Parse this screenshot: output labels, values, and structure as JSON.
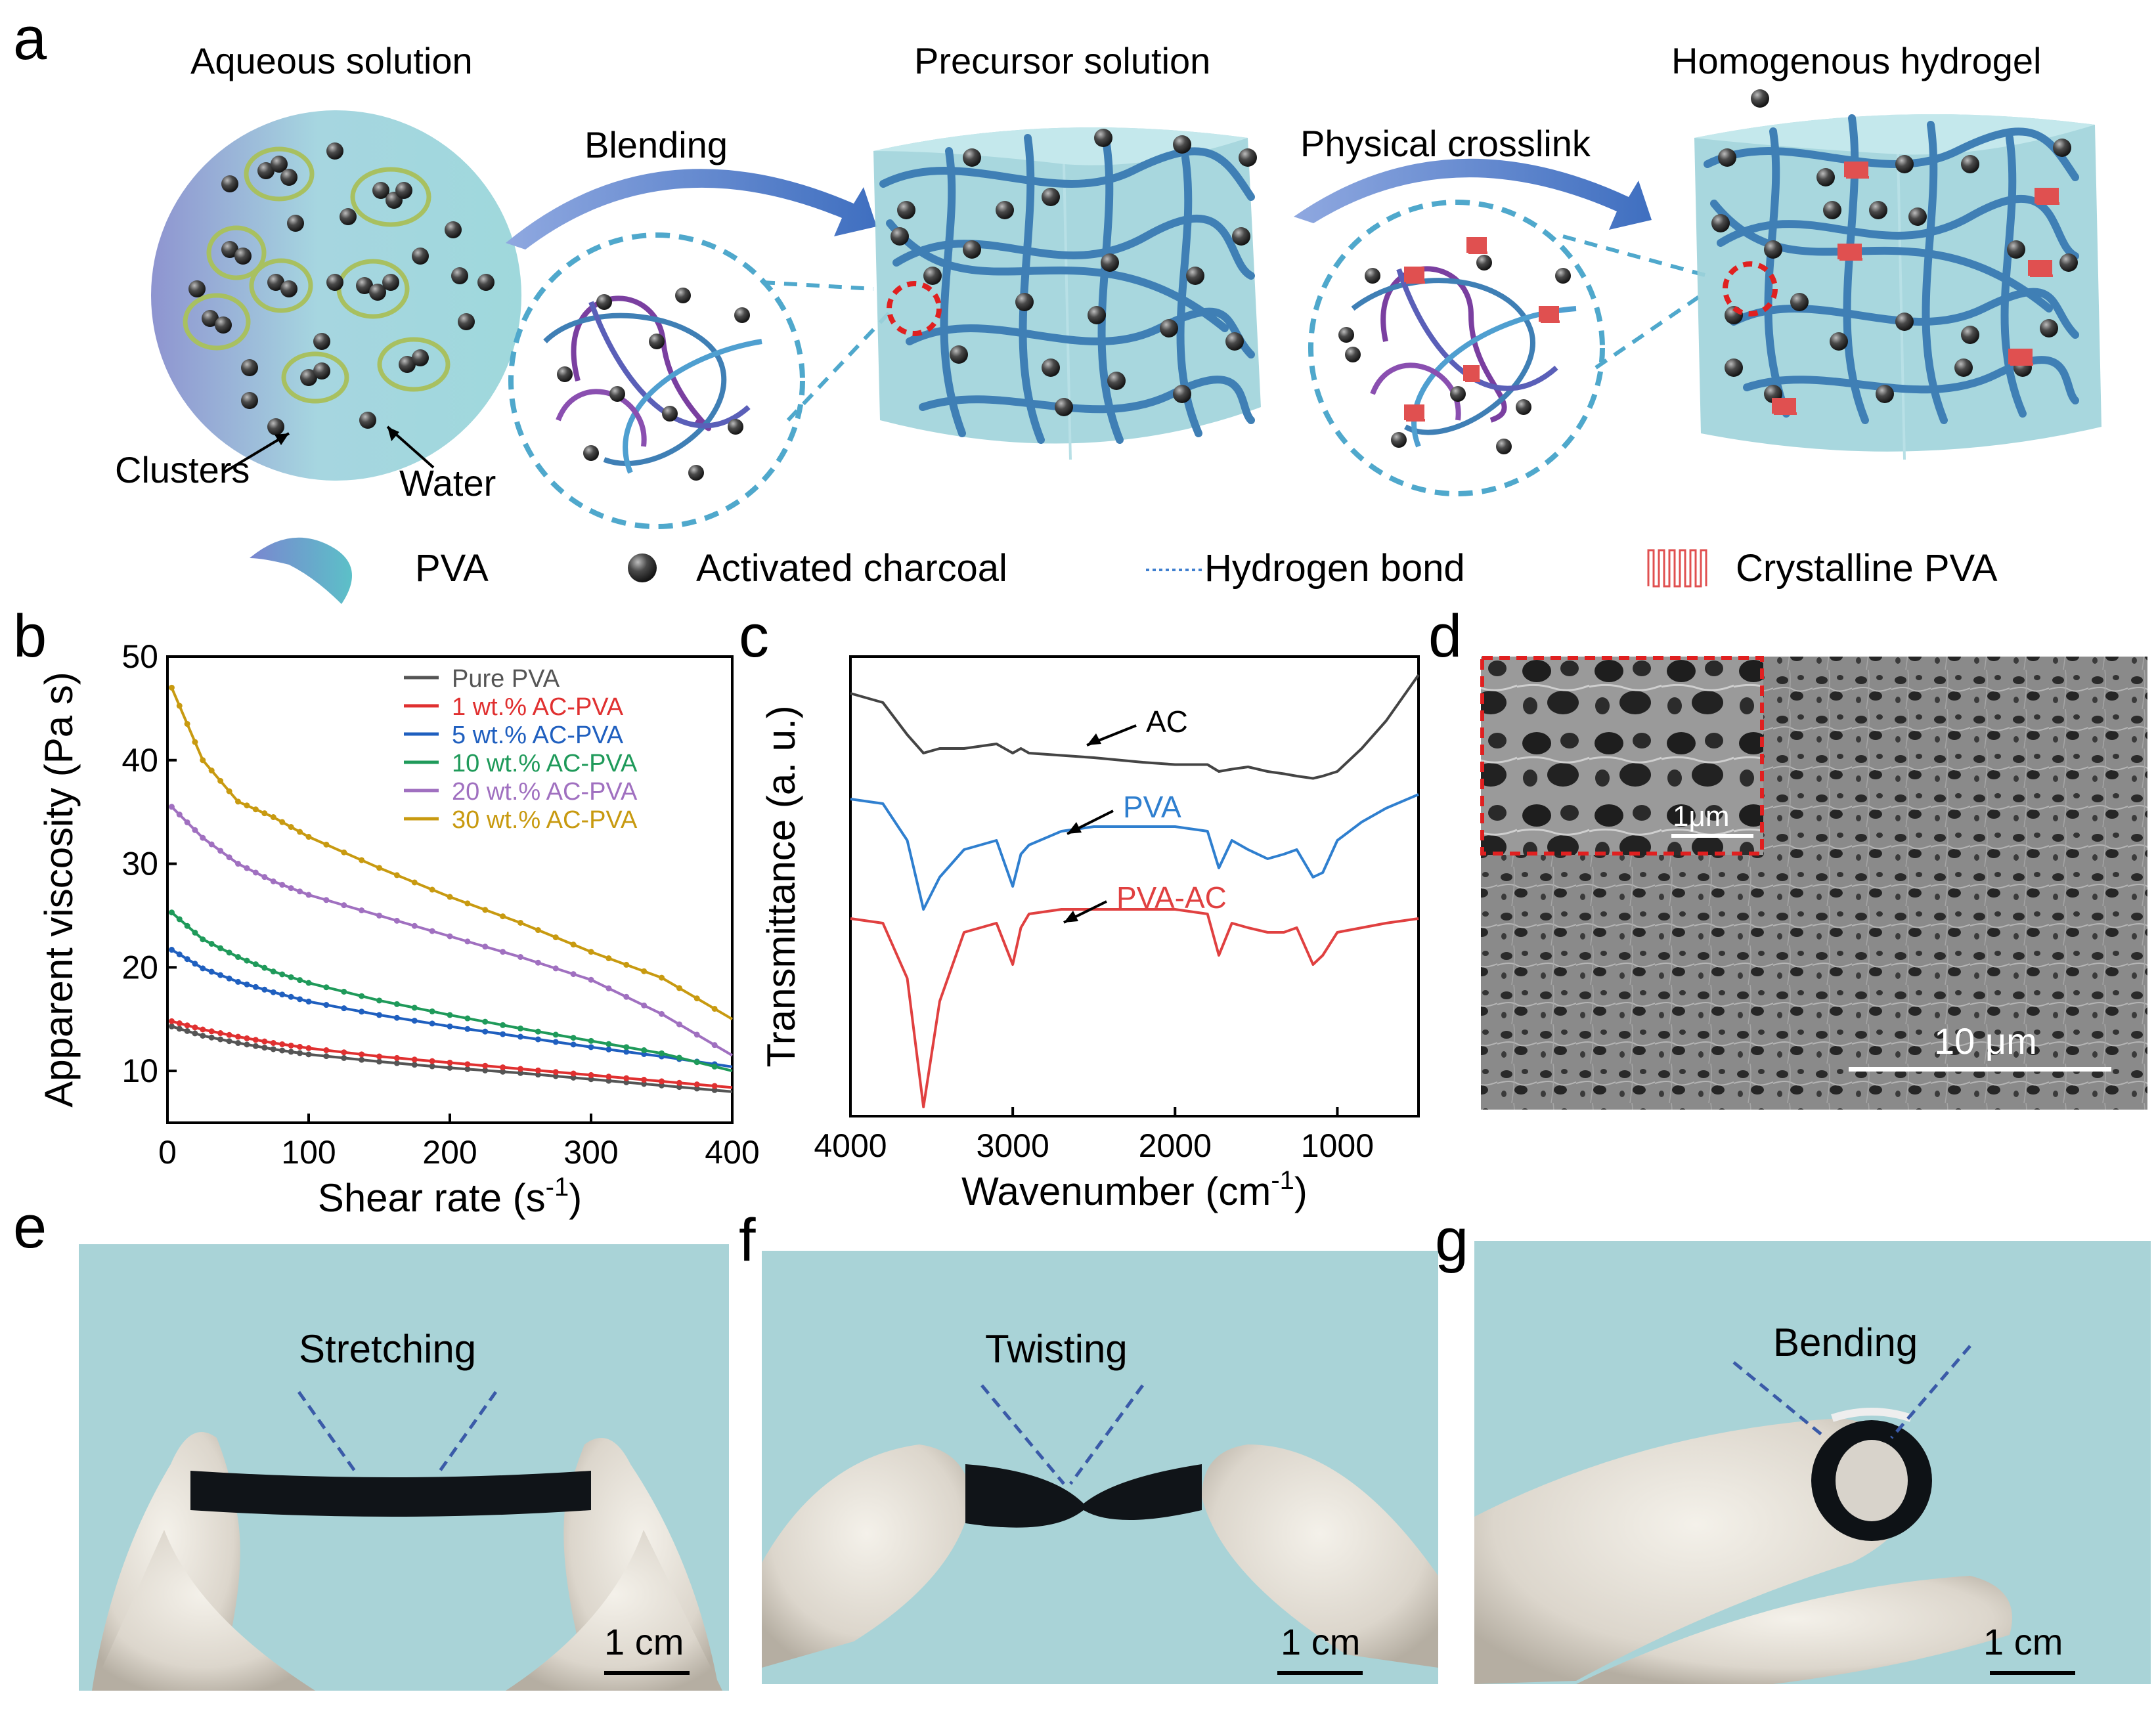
{
  "panels": {
    "a": {
      "letter": "a",
      "stage_titles": [
        "Aqueous solution",
        "Precursor solution",
        "Homogenous hydrogel"
      ],
      "arrow_labels": [
        "Blending",
        "Physical crosslink"
      ],
      "callouts": [
        "Clusters",
        "Water"
      ],
      "legend": [
        {
          "label": "PVA",
          "icon": "pva-ribbon-icon"
        },
        {
          "label": "Activated charcoal",
          "icon": "charcoal-sphere-icon"
        },
        {
          "label": "Hydrogen bond",
          "icon": "dotted-line-icon"
        },
        {
          "label": "Crystalline PVA",
          "icon": "zigzag-crystal-icon"
        }
      ]
    },
    "b": {
      "letter": "b"
    },
    "c": {
      "letter": "c"
    },
    "d": {
      "letter": "d",
      "inset_scale": "1μm",
      "scale": "10 μm"
    },
    "e": {
      "letter": "e",
      "caption": "Stretching",
      "scale": "1 cm"
    },
    "f": {
      "letter": "f",
      "caption": "Twisting",
      "scale": "1 cm"
    },
    "g": {
      "letter": "g",
      "caption": "Bending",
      "scale": "1 cm"
    }
  },
  "colors": {
    "pva_blue": "#3f7fb5",
    "pva_purple": "#7a3fa0",
    "charcoal": "#3a3a3a",
    "cube_fill": "#9fd3da",
    "photo_bg": "#a8d4d8",
    "cluster_ring": "#a8c060",
    "crystal_red": "#e05050"
  },
  "chart_data": [
    {
      "type": "line",
      "panel": "b",
      "xlabel": "Shear rate (s",
      "xlabel_sup": "-1",
      "xlabel_tail": ")",
      "ylabel": "Apparent viscosity (Pa s)",
      "xlim": [
        0,
        400
      ],
      "ylim": [
        5,
        50
      ],
      "xticks": [
        0,
        100,
        200,
        300,
        400
      ],
      "yticks": [
        10,
        20,
        30,
        40,
        50
      ],
      "legend_position": "top-right",
      "x": [
        3,
        25,
        50,
        75,
        100,
        150,
        200,
        250,
        300,
        350,
        400
      ],
      "series": [
        {
          "name": "Pure PVA",
          "color": "#555555",
          "values": [
            14.3,
            13.4,
            12.7,
            12.1,
            11.6,
            10.9,
            10.3,
            9.8,
            9.2,
            8.6,
            8.0
          ]
        },
        {
          "name": "1 wt.% AC-PVA",
          "color": "#e03030",
          "values": [
            14.8,
            14.0,
            13.3,
            12.7,
            12.2,
            11.4,
            10.8,
            10.2,
            9.6,
            9.0,
            8.4
          ]
        },
        {
          "name": "5 wt.% AC-PVA",
          "color": "#1f5fbf",
          "values": [
            21.7,
            19.9,
            18.6,
            17.6,
            16.7,
            15.4,
            14.3,
            13.3,
            12.3,
            11.4,
            10.4
          ]
        },
        {
          "name": "10 wt.% AC-PVA",
          "color": "#1f9a5a",
          "values": [
            25.3,
            22.7,
            21.0,
            19.6,
            18.5,
            16.8,
            15.4,
            14.1,
            12.9,
            11.7,
            10.0
          ]
        },
        {
          "name": "20 wt.% AC-PVA",
          "color": "#a070c0",
          "values": [
            35.5,
            32.5,
            30.0,
            28.3,
            27.0,
            25.0,
            23.0,
            21.0,
            18.8,
            15.5,
            11.5
          ]
        },
        {
          "name": "30 wt.% AC-PVA",
          "color": "#c89a10",
          "values": [
            47.0,
            40.0,
            36.0,
            34.5,
            32.6,
            29.6,
            26.8,
            24.3,
            21.5,
            19.0,
            15.0
          ]
        }
      ]
    },
    {
      "type": "line",
      "panel": "c",
      "xlabel": "Wavenumber (cm",
      "xlabel_sup": "-1",
      "xlabel_tail": ")",
      "ylabel": "Transmittance (a. u.)",
      "xlim": [
        4000,
        500
      ],
      "x_reversed": true,
      "xticks": [
        4000,
        3000,
        2000,
        1000
      ],
      "yticks": [],
      "ylim": [
        0,
        100
      ],
      "x": [
        4000,
        3800,
        3650,
        3550,
        3450,
        3300,
        3100,
        3000,
        2950,
        2900,
        2700,
        2500,
        2200,
        2000,
        1800,
        1730,
        1650,
        1550,
        1430,
        1330,
        1250,
        1150,
        1090,
        1000,
        850,
        700,
        500
      ],
      "series": [
        {
          "name": "AC",
          "color": "#444444",
          "values": [
            92,
            90,
            83,
            79,
            80,
            80,
            81,
            79,
            80,
            79,
            78.5,
            78,
            77,
            76.5,
            76.5,
            75,
            75.5,
            76,
            75,
            74.5,
            74,
            73.5,
            74,
            75,
            80,
            86,
            96
          ],
          "label": "AC"
        },
        {
          "name": "PVA",
          "color": "#2f7fcf",
          "values": [
            69,
            68,
            60,
            45,
            52,
            58,
            60,
            50,
            57,
            59,
            62,
            63,
            63,
            63,
            62,
            54,
            60,
            58,
            56,
            57,
            58,
            52,
            53,
            60,
            64,
            67,
            70
          ],
          "label": "PVA"
        },
        {
          "name": "PVA-AC",
          "color": "#e04040",
          "values": [
            43,
            42,
            30,
            2,
            25,
            40,
            42,
            33,
            41,
            44,
            45,
            45,
            45,
            45,
            44,
            35,
            42,
            41,
            40,
            40,
            41,
            33,
            35,
            40,
            41,
            42,
            43
          ],
          "label": "PVA-AC"
        }
      ]
    }
  ]
}
